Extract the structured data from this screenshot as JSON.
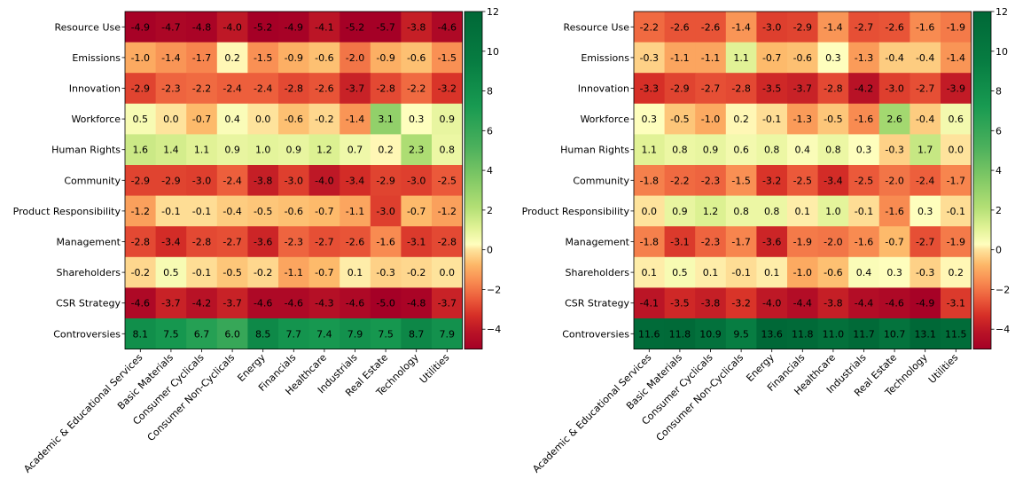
{
  "chart_data": [
    {
      "type": "heatmap",
      "title": "",
      "xlabel": "",
      "ylabel": "",
      "rows": [
        "Resource Use",
        "Emissions",
        "Innovation",
        "Workforce",
        "Human Rights",
        "Community",
        "Product Responsibility",
        "Management",
        "Shareholders",
        "CSR Strategy",
        "Controversies"
      ],
      "columns": [
        "Academic & Educational Services",
        "Basic Materials",
        "Consumer Cyclicals",
        "Consumer Non-Cyclicals",
        "Energy",
        "Financials",
        "Healthcare",
        "Industrials",
        "Real Estate",
        "Technology",
        "Utilities"
      ],
      "values": [
        [
          -4.9,
          -4.7,
          -4.8,
          -4.0,
          -5.2,
          -4.9,
          -4.1,
          -5.2,
          -5.7,
          -3.8,
          -4.6
        ],
        [
          -1.0,
          -1.4,
          -1.7,
          0.2,
          -1.5,
          -0.9,
          -0.6,
          -2.0,
          -0.9,
          -0.6,
          -1.5
        ],
        [
          -2.9,
          -2.3,
          -2.2,
          -2.4,
          -2.4,
          -2.8,
          -2.6,
          -3.7,
          -2.8,
          -2.2,
          -3.2
        ],
        [
          0.5,
          -0.0,
          -0.7,
          0.4,
          -0.0,
          -0.6,
          -0.2,
          -1.4,
          3.1,
          0.3,
          0.9
        ],
        [
          1.6,
          1.4,
          1.1,
          0.9,
          1.0,
          0.9,
          1.2,
          0.7,
          0.2,
          2.3,
          0.8
        ],
        [
          -2.9,
          -2.9,
          -3.0,
          -2.4,
          -3.8,
          -3.0,
          -4.0,
          -3.4,
          -2.9,
          -3.0,
          -2.5
        ],
        [
          -1.2,
          -0.1,
          -0.1,
          -0.4,
          -0.5,
          -0.6,
          -0.7,
          -1.1,
          -3.0,
          -0.7,
          -1.2
        ],
        [
          -2.8,
          -3.4,
          -2.8,
          -2.7,
          -3.6,
          -2.3,
          -2.7,
          -2.6,
          -1.6,
          -3.1,
          -2.8
        ],
        [
          -0.2,
          0.5,
          -0.1,
          -0.5,
          -0.2,
          -1.1,
          -0.7,
          0.1,
          -0.3,
          -0.2,
          -0.0
        ],
        [
          -4.6,
          -3.7,
          -4.2,
          -3.7,
          -4.6,
          -4.6,
          -4.3,
          -4.6,
          -5.0,
          -4.8,
          -3.7
        ],
        [
          8.1,
          7.5,
          6.7,
          6.0,
          8.5,
          7.7,
          7.4,
          7.9,
          7.5,
          8.7,
          7.9
        ]
      ],
      "colorbar": {
        "min": -5,
        "max": 12,
        "ticks": [
          -4,
          -2,
          0,
          2,
          4,
          6,
          8,
          10,
          12
        ],
        "colormap": "RdYlGn"
      }
    },
    {
      "type": "heatmap",
      "title": "",
      "xlabel": "",
      "ylabel": "",
      "rows": [
        "Resource Use",
        "Emissions",
        "Innovation",
        "Workforce",
        "Human Rights",
        "Community",
        "Product Responsibility",
        "Management",
        "Shareholders",
        "CSR Strategy",
        "Controversies"
      ],
      "columns": [
        "Academic & Educational Services",
        "Basic Materials",
        "Consumer Cyclicals",
        "Consumer Non-Cyclicals",
        "Energy",
        "Financials",
        "Healthcare",
        "Industrials",
        "Real Estate",
        "Technology",
        "Utilities"
      ],
      "values": [
        [
          -2.2,
          -2.6,
          -2.6,
          -1.4,
          -3.0,
          -2.9,
          -1.4,
          -2.7,
          -2.6,
          -1.6,
          -1.9
        ],
        [
          -0.3,
          -1.1,
          -1.1,
          1.1,
          -0.7,
          -0.6,
          0.3,
          -1.3,
          -0.4,
          -0.4,
          -1.4
        ],
        [
          -3.3,
          -2.9,
          -2.7,
          -2.8,
          -3.5,
          -3.7,
          -2.8,
          -4.2,
          -3.0,
          -2.7,
          -3.9
        ],
        [
          0.3,
          -0.5,
          -1.0,
          0.2,
          -0.1,
          -1.3,
          -0.5,
          -1.6,
          2.6,
          -0.4,
          0.6
        ],
        [
          1.1,
          0.8,
          0.9,
          0.6,
          0.8,
          0.4,
          0.8,
          0.3,
          -0.3,
          1.7,
          -0.0
        ],
        [
          -1.8,
          -2.2,
          -2.3,
          -1.5,
          -3.2,
          -2.5,
          -3.4,
          -2.5,
          -2.0,
          -2.4,
          -1.7
        ],
        [
          -0.0,
          0.9,
          1.2,
          0.8,
          0.8,
          0.1,
          1.0,
          -0.1,
          -1.6,
          0.3,
          -0.1
        ],
        [
          -1.8,
          -3.1,
          -2.3,
          -1.7,
          -3.6,
          -1.9,
          -2.0,
          -1.6,
          -0.7,
          -2.7,
          -1.9
        ],
        [
          0.1,
          0.5,
          0.1,
          -0.1,
          0.1,
          -1.0,
          -0.6,
          0.4,
          0.3,
          -0.3,
          0.2
        ],
        [
          -4.1,
          -3.5,
          -3.8,
          -3.2,
          -4.0,
          -4.4,
          -3.8,
          -4.4,
          -4.6,
          -4.9,
          -3.1
        ],
        [
          11.6,
          11.8,
          10.9,
          9.5,
          13.6,
          11.8,
          11.0,
          11.7,
          10.7,
          13.1,
          11.5
        ]
      ],
      "colorbar": {
        "min": -5,
        "max": 12,
        "ticks": [
          -4,
          -2,
          0,
          2,
          4,
          6,
          8,
          10,
          12
        ],
        "colormap": "RdYlGn"
      }
    }
  ]
}
